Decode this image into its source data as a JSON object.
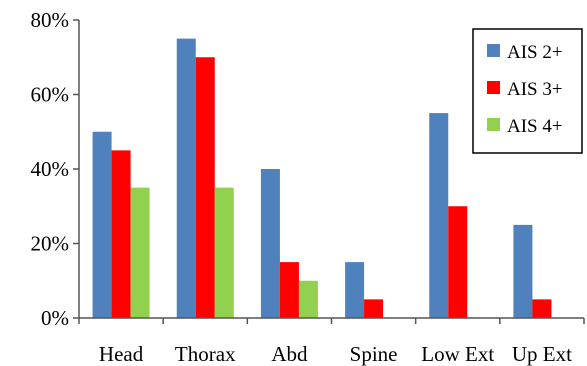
{
  "chart_data": {
    "type": "bar",
    "categories": [
      "Head",
      "Thorax",
      "Abd",
      "Spine",
      "Low Ext",
      "Up Ext"
    ],
    "series": [
      {
        "name": "AIS 2+",
        "color": "#4f81bd",
        "values": [
          50,
          75,
          40,
          15,
          55,
          25
        ]
      },
      {
        "name": "AIS 3+",
        "color": "#ff0000",
        "values": [
          45,
          70,
          15,
          5,
          30,
          5
        ]
      },
      {
        "name": "AIS 4+",
        "color": "#92d050",
        "values": [
          35,
          35,
          10,
          0,
          0,
          0
        ]
      }
    ],
    "y_ticks": [
      "0%",
      "20%",
      "40%",
      "60%",
      "80%"
    ],
    "y_tick_values": [
      0,
      20,
      40,
      60,
      80
    ],
    "ylim": [
      0,
      80
    ],
    "grid": false,
    "legend_position": "top-right"
  }
}
